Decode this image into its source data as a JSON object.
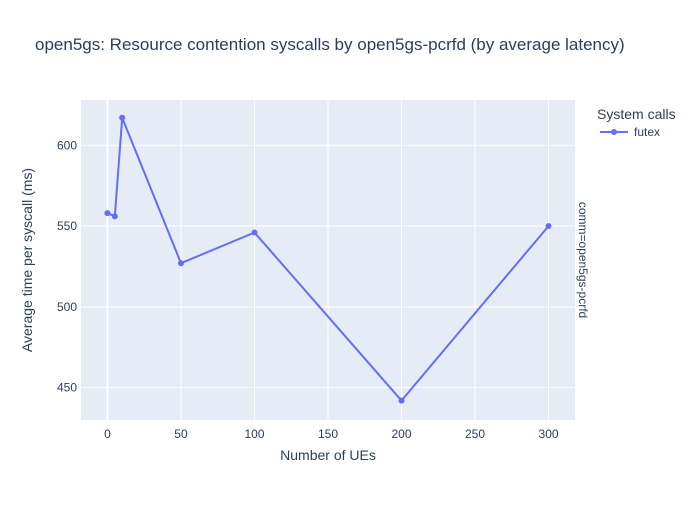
{
  "chart_data": {
    "type": "line",
    "title": "open5gs: Resource contention syscalls by open5gs-pcrfd (by average latency)",
    "xlabel": "Number of UEs",
    "ylabel": "Average time per syscall (ms)",
    "xlim": [
      -18,
      318
    ],
    "ylim": [
      430,
      628
    ],
    "x_ticks": [
      0,
      50,
      100,
      150,
      200,
      250,
      300
    ],
    "y_ticks": [
      450,
      500,
      550,
      600
    ],
    "grid": true,
    "legend": {
      "title": "System calls",
      "placement": "top-right outside"
    },
    "facet_label": "comm=open5gs-pcrfd",
    "series": [
      {
        "name": "futex",
        "color": "#636efa",
        "x": [
          0,
          5,
          10,
          50,
          100,
          200,
          300
        ],
        "y": [
          558,
          556,
          617,
          527,
          546,
          442,
          550
        ]
      }
    ]
  }
}
